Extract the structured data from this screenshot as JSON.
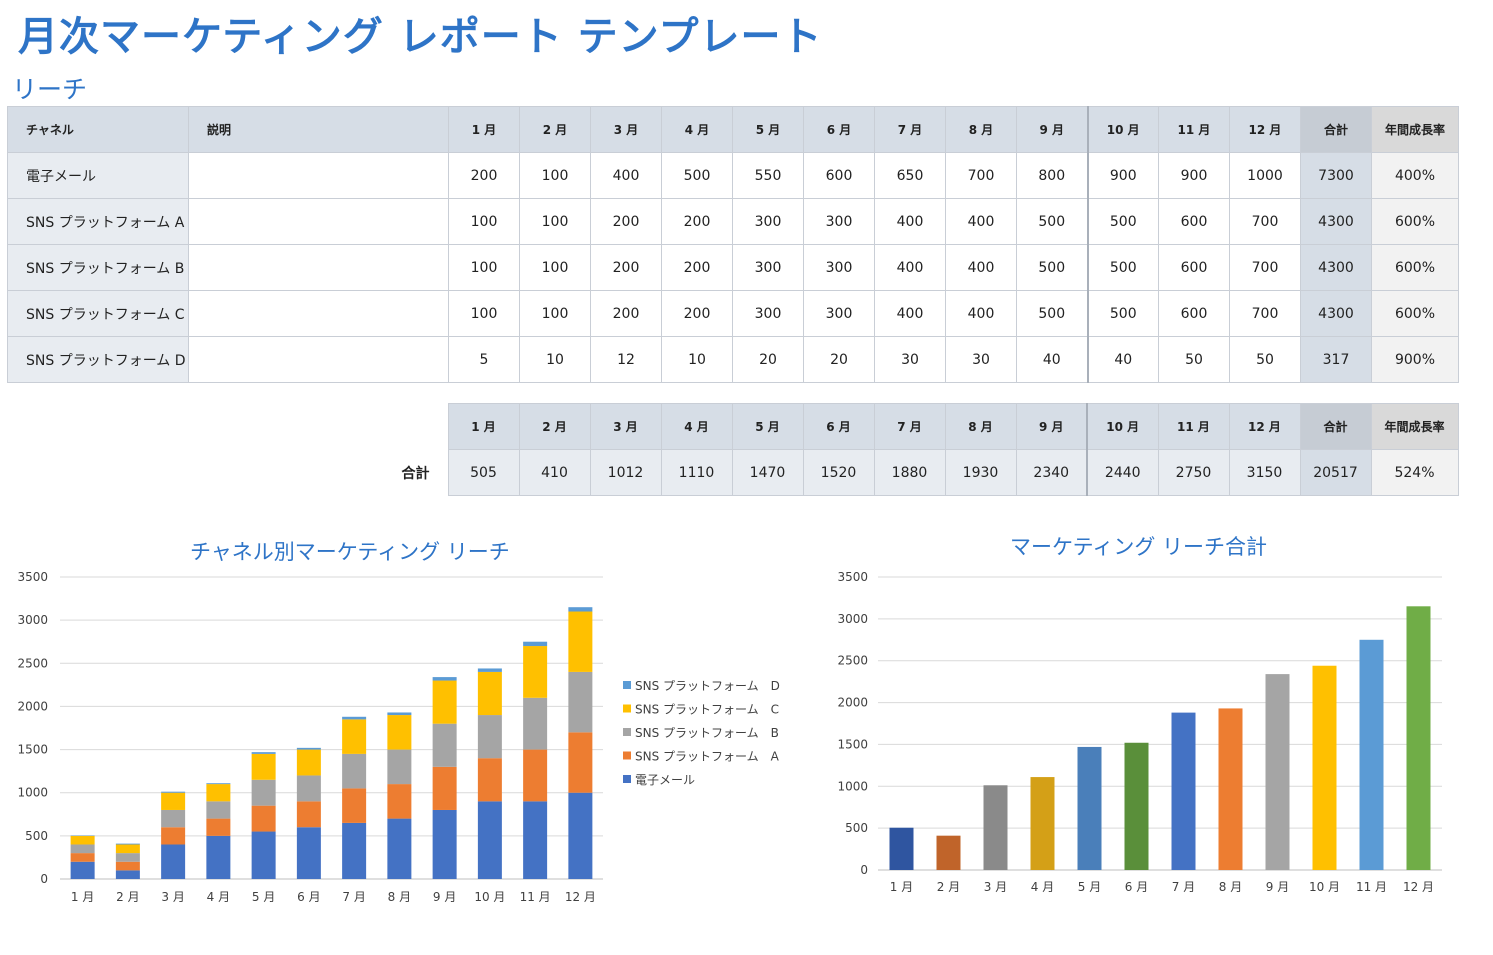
{
  "title": "月次マーケティング レポート テンプレート",
  "subtitle": "リーチ",
  "table": {
    "headers": {
      "channel": "チャネル",
      "description": "説明",
      "total": "合計",
      "growth": "年間成長率"
    },
    "months": [
      "1 月",
      "2 月",
      "3 月",
      "4 月",
      "5 月",
      "6 月",
      "7 月",
      "8 月",
      "9 月",
      "10 月",
      "11 月",
      "12 月"
    ],
    "rows": [
      {
        "channel": "電子メール",
        "description": "",
        "values": [
          "200",
          "100",
          "400",
          "500",
          "550",
          "600",
          "650",
          "700",
          "800",
          "900",
          "900",
          "1000"
        ],
        "total": "7300",
        "growth": "400%"
      },
      {
        "channel": "SNS プラットフォーム A",
        "description": "",
        "values": [
          "100",
          "100",
          "200",
          "200",
          "300",
          "300",
          "400",
          "400",
          "500",
          "500",
          "600",
          "700"
        ],
        "total": "4300",
        "growth": "600%"
      },
      {
        "channel": "SNS プラットフォーム B",
        "description": "",
        "values": [
          "100",
          "100",
          "200",
          "200",
          "300",
          "300",
          "400",
          "400",
          "500",
          "500",
          "600",
          "700"
        ],
        "total": "4300",
        "growth": "600%"
      },
      {
        "channel": "SNS プラットフォーム C",
        "description": "",
        "values": [
          "100",
          "100",
          "200",
          "200",
          "300",
          "300",
          "400",
          "400",
          "500",
          "500",
          "600",
          "700"
        ],
        "total": "4300",
        "growth": "600%"
      },
      {
        "channel": "SNS プラットフォーム D",
        "description": "",
        "values": [
          "5",
          "10",
          "12",
          "10",
          "20",
          "20",
          "30",
          "30",
          "40",
          "40",
          "50",
          "50"
        ],
        "total": "317",
        "growth": "900%"
      }
    ]
  },
  "totals": {
    "label": "合計",
    "values": [
      "505",
      "410",
      "1012",
      "1110",
      "1470",
      "1520",
      "1880",
      "1930",
      "2340",
      "2440",
      "2750",
      "3150"
    ],
    "total": "20517",
    "growth": "524%"
  },
  "chart_data": [
    {
      "type": "bar",
      "stacked": true,
      "title": "チャネル別マーケティング リーチ",
      "categories": [
        "1 月",
        "2 月",
        "3 月",
        "4 月",
        "5 月",
        "6 月",
        "7 月",
        "8 月",
        "9 月",
        "10 月",
        "11 月",
        "12 月"
      ],
      "series": [
        {
          "name": "電子メール",
          "color": "#4472c4",
          "values": [
            200,
            100,
            400,
            500,
            550,
            600,
            650,
            700,
            800,
            900,
            900,
            1000
          ]
        },
        {
          "name": "SNS プラットフォーム　A",
          "color": "#ed7d31",
          "values": [
            100,
            100,
            200,
            200,
            300,
            300,
            400,
            400,
            500,
            500,
            600,
            700
          ]
        },
        {
          "name": "SNS プラットフォーム　B",
          "color": "#a5a5a5",
          "values": [
            100,
            100,
            200,
            200,
            300,
            300,
            400,
            400,
            500,
            500,
            600,
            700
          ]
        },
        {
          "name": "SNS プラットフォーム　C",
          "color": "#ffc000",
          "values": [
            100,
            100,
            200,
            200,
            300,
            300,
            400,
            400,
            500,
            500,
            600,
            700
          ]
        },
        {
          "name": "SNS プラットフォーム　D",
          "color": "#5b9bd5",
          "values": [
            5,
            10,
            12,
            10,
            20,
            20,
            30,
            30,
            40,
            40,
            50,
            50
          ]
        }
      ],
      "ylim": [
        0,
        3500
      ],
      "yticks": [
        0,
        500,
        1000,
        1500,
        2000,
        2500,
        3000,
        3500
      ],
      "legend": "right",
      "grid": true
    },
    {
      "type": "bar",
      "title": "マーケティング リーチ合計",
      "categories": [
        "1 月",
        "2 月",
        "3 月",
        "4 月",
        "5 月",
        "6 月",
        "7 月",
        "8 月",
        "9 月",
        "10 月",
        "11 月",
        "12 月"
      ],
      "values": [
        505,
        410,
        1012,
        1110,
        1470,
        1520,
        1880,
        1930,
        2340,
        2440,
        2750,
        3150
      ],
      "colors": [
        "#2f55a0",
        "#c0642a",
        "#8a8a8a",
        "#d4a017",
        "#4a7fba",
        "#5a8f3a",
        "#4472c4",
        "#ed7d31",
        "#a5a5a5",
        "#ffc000",
        "#5b9bd5",
        "#70ad47"
      ],
      "ylim": [
        0,
        3500
      ],
      "yticks": [
        0,
        500,
        1000,
        1500,
        2000,
        2500,
        3000,
        3500
      ],
      "grid": true
    }
  ]
}
